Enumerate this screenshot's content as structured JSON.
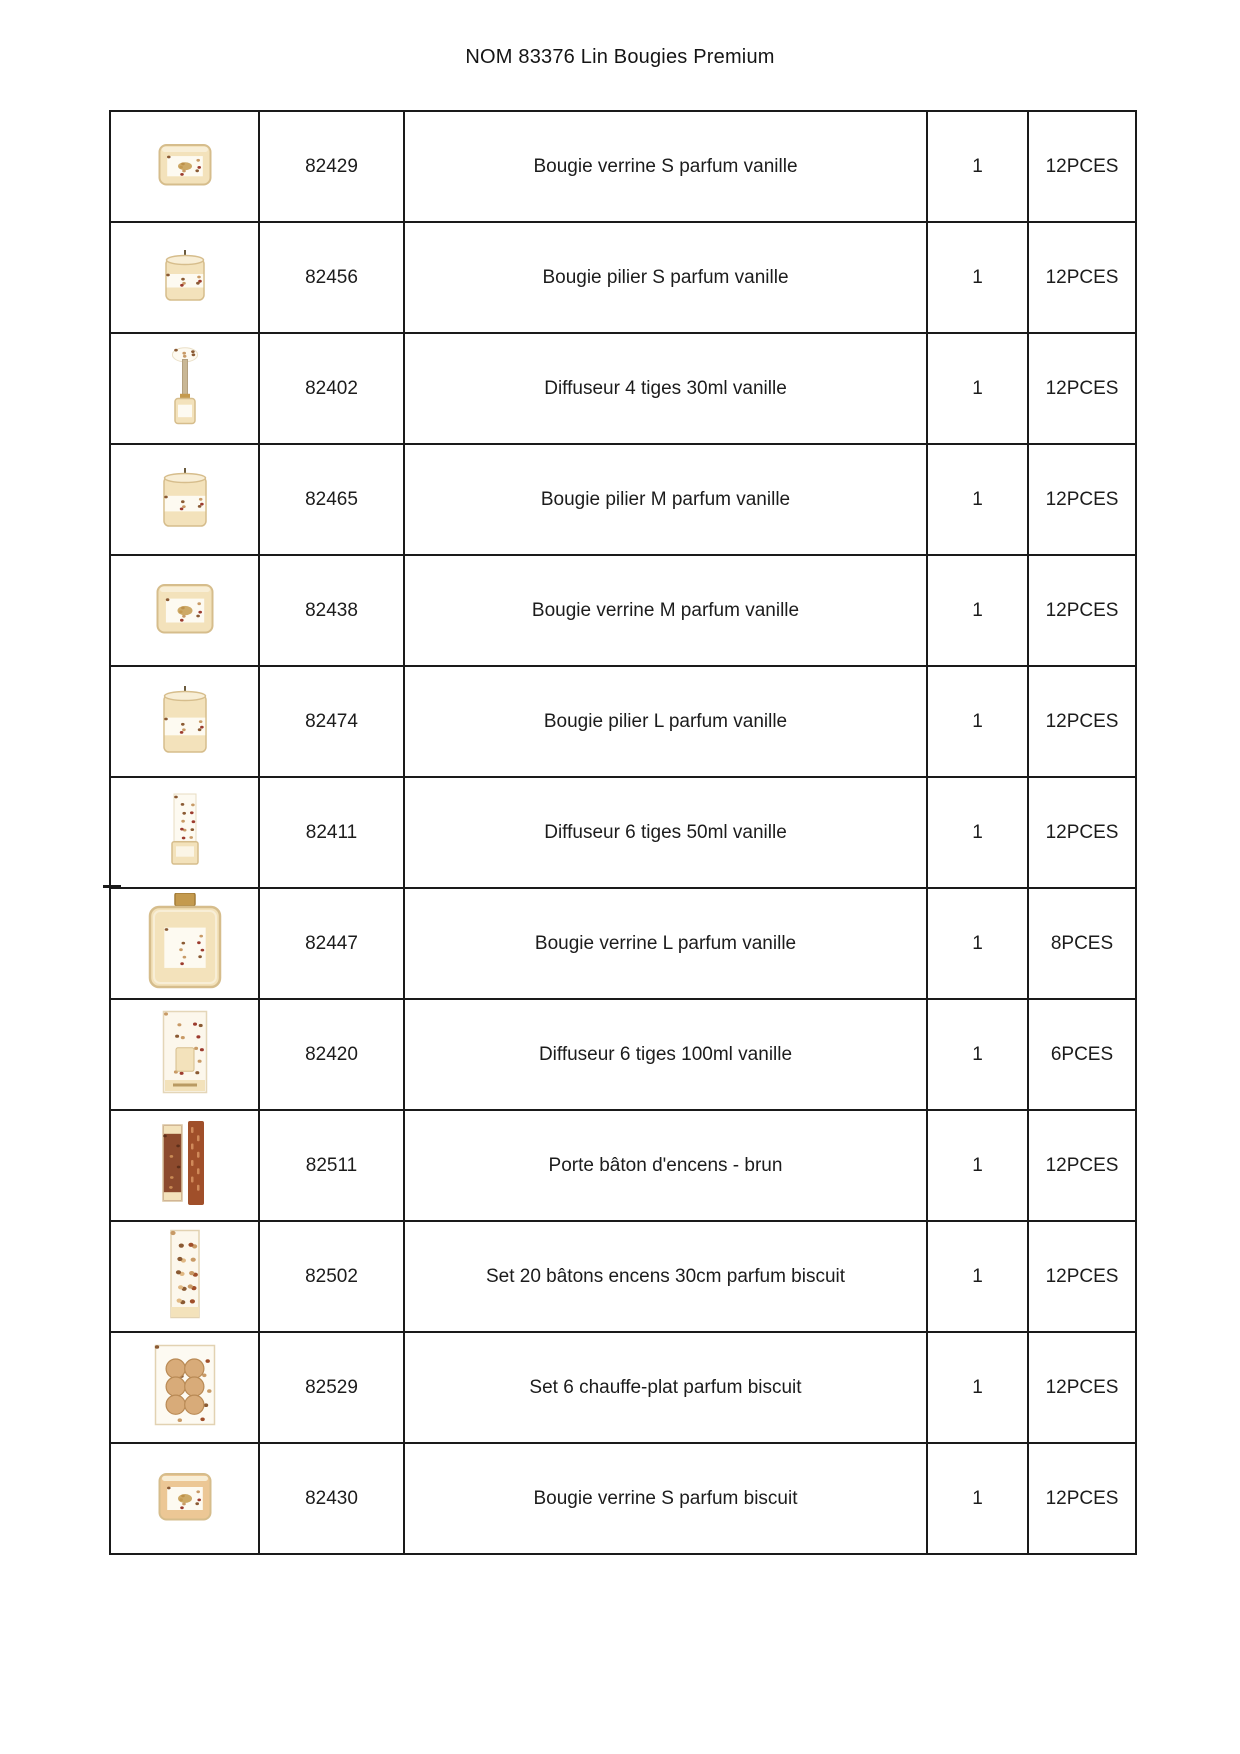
{
  "page": {
    "title": "NOM 83376 Lin Bougies Premium"
  },
  "palette": {
    "grid_border": "#1a1a1a",
    "text": "#1c1c1c",
    "cream": "#f3e2bb",
    "cream_light": "#f8eed6",
    "outline": "#d6bd8c",
    "label": "#fdfaf1",
    "gold": "#c49a4e",
    "speck_brown": "#8a5a33",
    "speck_red": "#9c3b2e",
    "speck_tan": "#c89a66",
    "rust": "#a04f2a",
    "brown": "#8c4a2d",
    "tan_circle": "#d8ab79"
  },
  "table": {
    "rows": [
      {
        "image": "verrine-candle-s-icon",
        "code": "82429",
        "description": "Bougie verrine S parfum vanille",
        "qty": "1",
        "pack": "12PCES"
      },
      {
        "image": "pillar-candle-s-icon",
        "code": "82456",
        "description": "Bougie pilier S parfum vanille",
        "qty": "1",
        "pack": "12PCES"
      },
      {
        "image": "diffuser-4-sticks-icon",
        "code": "82402",
        "description": "Diffuseur 4 tiges 30ml vanille",
        "qty": "1",
        "pack": "12PCES"
      },
      {
        "image": "pillar-candle-m-icon",
        "code": "82465",
        "description": "Bougie pilier M parfum vanille",
        "qty": "1",
        "pack": "12PCES"
      },
      {
        "image": "verrine-candle-m-icon",
        "code": "82438",
        "description": "Bougie verrine M parfum vanille",
        "qty": "1",
        "pack": "12PCES"
      },
      {
        "image": "pillar-candle-l-icon",
        "code": "82474",
        "description": "Bougie pilier L parfum vanille",
        "qty": "1",
        "pack": "12PCES"
      },
      {
        "image": "diffuser-6-sticks-icon",
        "code": "82411",
        "description": "Diffuseur 6 tiges 50ml vanille",
        "qty": "1",
        "pack": "12PCES"
      },
      {
        "image": "verrine-candle-l-icon",
        "code": "82447",
        "description": "Bougie verrine L parfum vanille",
        "qty": "1",
        "pack": "8PCES"
      },
      {
        "image": "diffuser-100ml-box-icon",
        "code": "82420",
        "description": "Diffuseur 6 tiges 100ml vanille",
        "qty": "1",
        "pack": "6PCES"
      },
      {
        "image": "incense-holder-icon",
        "code": "82511",
        "description": "Porte bâton d'encens - brun",
        "qty": "1",
        "pack": "12PCES"
      },
      {
        "image": "incense-sticks-set-icon",
        "code": "82502",
        "description": "Set 20 bâtons encens 30cm parfum biscuit",
        "qty": "1",
        "pack": "12PCES"
      },
      {
        "image": "tealight-set-icon",
        "code": "82529",
        "description": "Set 6 chauffe-plat parfum biscuit",
        "qty": "1",
        "pack": "12PCES"
      },
      {
        "image": "verrine-candle-biscuit-icon",
        "code": "82430",
        "description": "Bougie verrine S parfum biscuit",
        "qty": "1",
        "pack": "12PCES"
      }
    ]
  }
}
